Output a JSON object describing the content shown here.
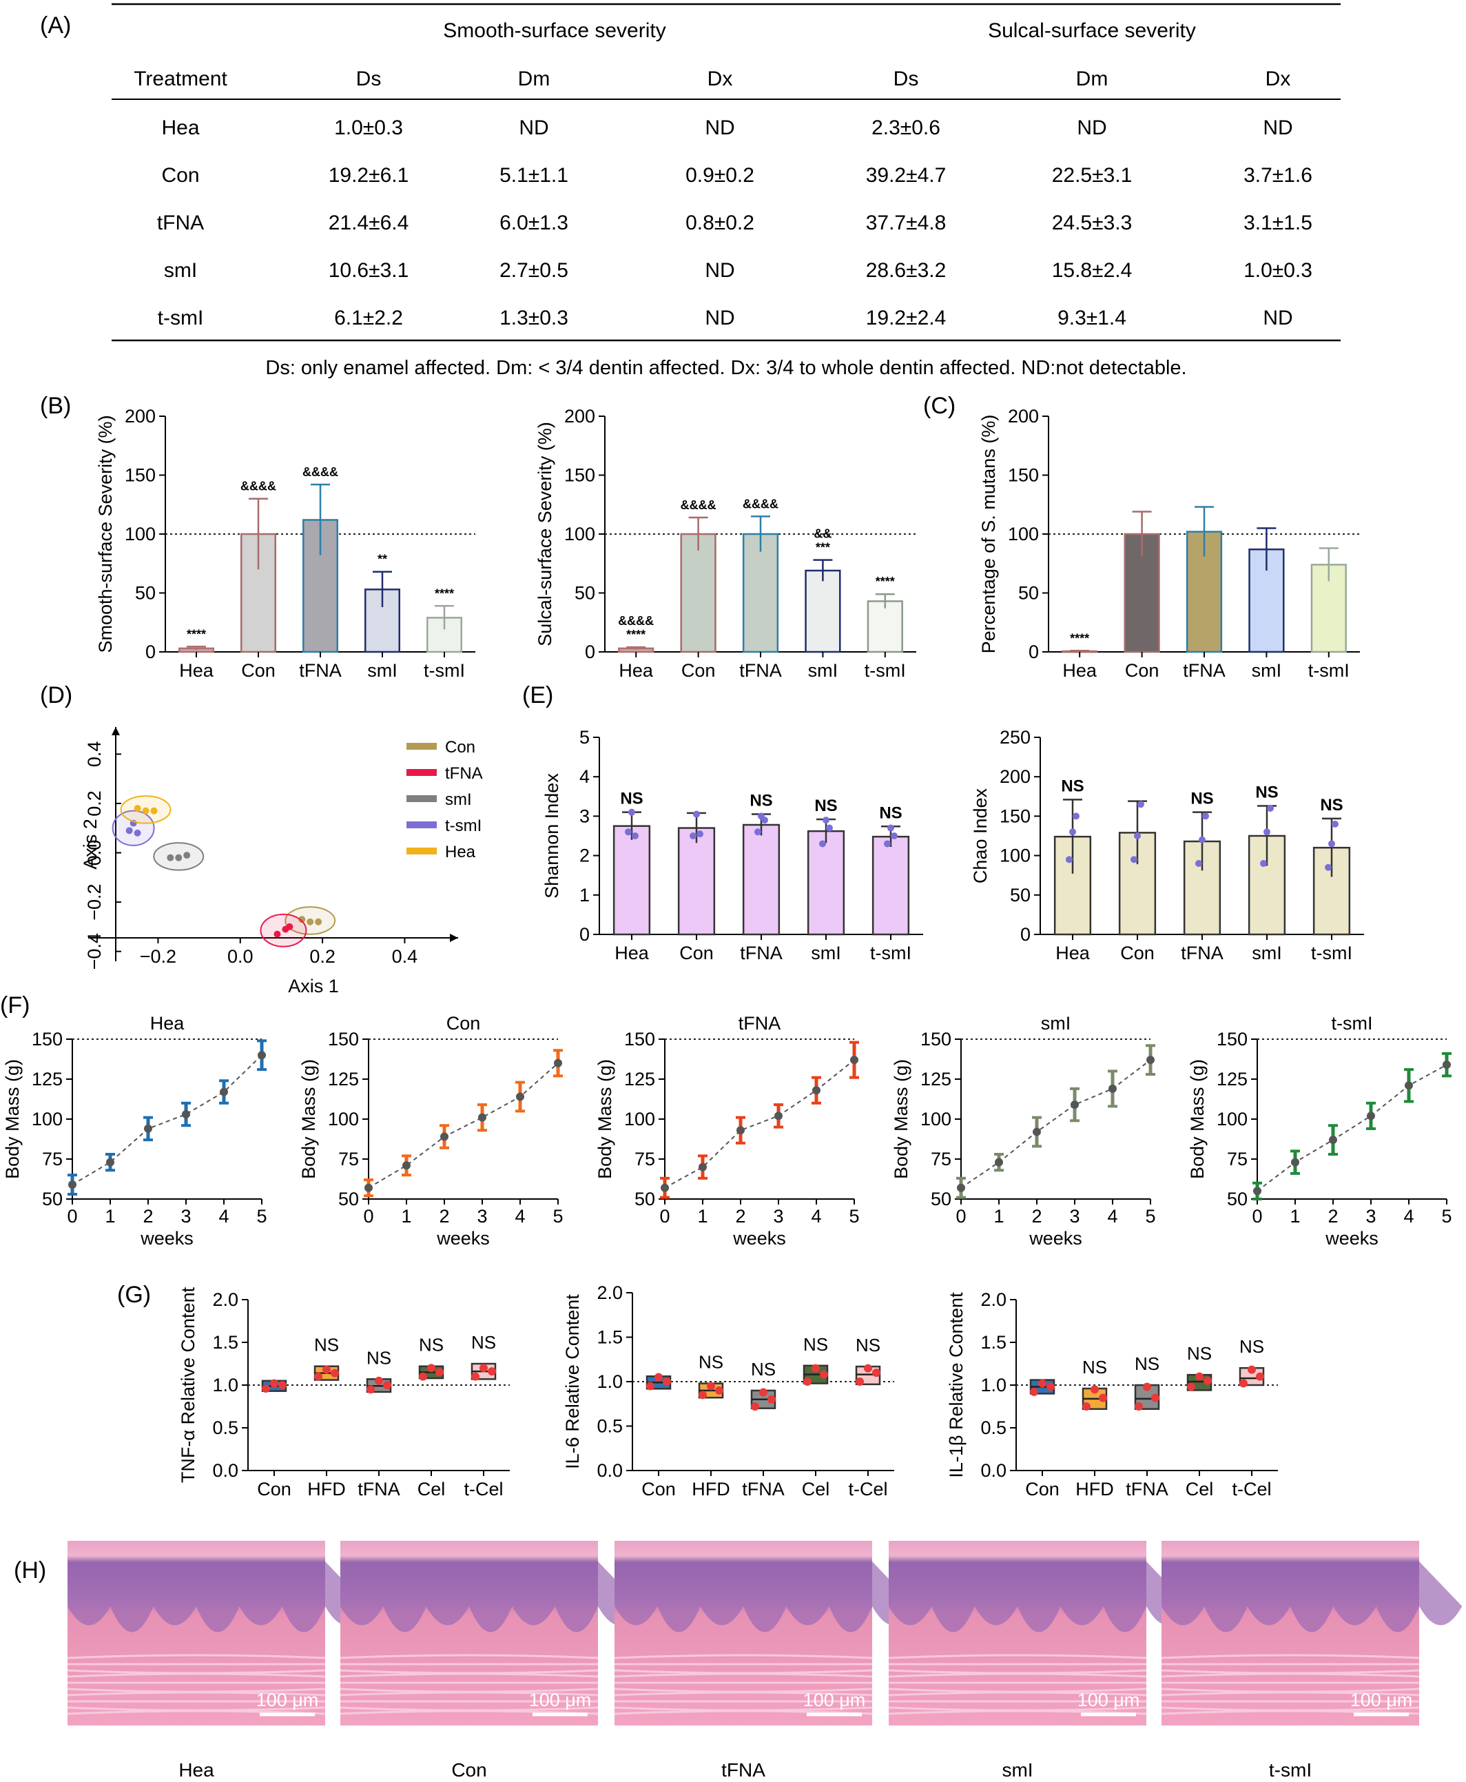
{
  "panel_labels": [
    "(A)",
    "(B)",
    "(C)",
    "(D)",
    "(E)",
    "(F)",
    "(G)",
    "(H)"
  ],
  "table": {
    "group_headers": [
      "Smooth-surface severity",
      "Sulcal-surface severity"
    ],
    "columns": [
      "Treatment",
      "Ds",
      "Dm",
      "Dx",
      "Ds",
      "Dm",
      "Dx"
    ],
    "rows": [
      [
        "Hea",
        "1.0±0.3",
        "ND",
        "ND",
        "2.3±0.6",
        "ND",
        "ND"
      ],
      [
        "Con",
        "19.2±6.1",
        "5.1±1.1",
        "0.9±0.2",
        "39.2±4.7",
        "22.5±3.1",
        "3.7±1.6"
      ],
      [
        "tFNA",
        "21.4±6.4",
        "6.0±1.3",
        "0.8±0.2",
        "37.7±4.8",
        "24.5±3.3",
        "3.1±1.5"
      ],
      [
        "smI",
        "10.6±3.1",
        "2.7±0.5",
        "ND",
        "28.6±3.2",
        "15.8±2.4",
        "1.0±0.3"
      ],
      [
        "t-smI",
        "6.1±2.2",
        "1.3±0.3",
        "ND",
        "19.2±2.4",
        "9.3±1.4",
        "ND"
      ]
    ],
    "footnote": "Ds: only enamel affected. Dm: < 3/4 dentin affected. Dx: 3/4 to whole dentin affected. ND:not detectable."
  },
  "histology": {
    "scale_bar": "100 μm",
    "labels": [
      "Hea",
      "Con",
      "tFNA",
      "smI",
      "t-smI"
    ]
  },
  "chart_data": [
    {
      "id": "B1",
      "type": "bar",
      "categories": [
        "Hea",
        "Con",
        "tFNA",
        "smI",
        "t-smI"
      ],
      "values": [
        3,
        100,
        112,
        53,
        29
      ],
      "errors": [
        1.5,
        30,
        30,
        15,
        10
      ],
      "annotations": [
        [
          "****"
        ],
        [
          "&&&&"
        ],
        [
          "&&&&"
        ],
        [
          "**"
        ],
        [
          "****"
        ]
      ],
      "ylabel": "Smooth-surface Severity (%)",
      "ylim": [
        0,
        200
      ],
      "yticks": [
        0,
        50,
        100,
        150,
        200
      ],
      "reference_line": 100,
      "fills": [
        "#c9a7a7",
        "#d2d2d2",
        "#a8a8ae",
        "#d7dce8",
        "#eef2ec"
      ],
      "edges": [
        "#b07070",
        "#a96a6a",
        "#2d7fa8",
        "#1f2d6e",
        "#9aa89a"
      ]
    },
    {
      "id": "B2",
      "type": "bar",
      "categories": [
        "Hea",
        "Con",
        "tFNA",
        "smI",
        "t-smI"
      ],
      "values": [
        3,
        100,
        100,
        69,
        43
      ],
      "errors": [
        1,
        14,
        15,
        9,
        6
      ],
      "annotations": [
        [
          "&&&&",
          "****"
        ],
        [
          "&&&&"
        ],
        [
          "&&&&"
        ],
        [
          "&&",
          "***"
        ],
        [
          "****"
        ]
      ],
      "ylabel": "Sulcal-surface Severity (%)",
      "ylim": [
        0,
        200
      ],
      "yticks": [
        0,
        50,
        100,
        150,
        200
      ],
      "reference_line": 100,
      "fills": [
        "#c9a7a7",
        "#c5cfc5",
        "#c5cfc5",
        "#eceeee",
        "#f4f6f1"
      ],
      "edges": [
        "#b07070",
        "#a96a6a",
        "#2d7fa8",
        "#1f2d6e",
        "#8a9a8a"
      ]
    },
    {
      "id": "C",
      "type": "bar",
      "categories": [
        "Hea",
        "Con",
        "tFNA",
        "smI",
        "t-smI"
      ],
      "values": [
        0.5,
        100,
        102,
        87,
        74
      ],
      "errors": [
        0.5,
        19,
        21,
        18,
        14
      ],
      "annotations": [
        [
          "****"
        ],
        [],
        [],
        [],
        []
      ],
      "ylabel": "Percentage of S. mutans (%)",
      "ylim": [
        0,
        200
      ],
      "yticks": [
        0,
        50,
        100,
        150,
        200
      ],
      "reference_line": 100,
      "fills": [
        "#c9a7a7",
        "#706868",
        "#b6a36a",
        "#c8d8f6",
        "#e8f1c8"
      ],
      "edges": [
        "#a96a6a",
        "#a96a6a",
        "#2d7fa8",
        "#1f2d6e",
        "#9aa89a"
      ]
    },
    {
      "id": "D",
      "type": "scatter",
      "xlabel": "Axis 1",
      "ylabel": "Axis 2",
      "xlim": [
        -0.37,
        0.53
      ],
      "ylim": [
        -0.44,
        0.51
      ],
      "xticks": [
        -0.2,
        0.0,
        0.2,
        0.4
      ],
      "yticks": [
        -0.4,
        -0.2,
        0.0,
        0.2,
        0.4
      ],
      "xtick_labels": [
        "−0.2",
        "0.0",
        "0.2",
        "0.4"
      ],
      "ytick_labels": [
        "−0.4",
        "−0.2",
        "0.0",
        "0.2",
        "0.4"
      ],
      "series": [
        {
          "name": "Con",
          "color": "#b59a52",
          "points": [
            [
              0.15,
              -0.27
            ],
            [
              0.17,
              -0.28
            ],
            [
              0.19,
              -0.28
            ]
          ]
        },
        {
          "name": "tFNA",
          "color": "#e8194a",
          "points": [
            [
              0.09,
              -0.33
            ],
            [
              0.11,
              -0.31
            ],
            [
              0.12,
              -0.3
            ]
          ]
        },
        {
          "name": "smI",
          "color": "#7f7f7f",
          "points": [
            [
              -0.17,
              -0.02
            ],
            [
              -0.15,
              -0.02
            ],
            [
              -0.13,
              -0.01
            ]
          ]
        },
        {
          "name": "t-smI",
          "color": "#7b6fd6",
          "points": [
            [
              -0.27,
              0.09
            ],
            [
              -0.26,
              0.12
            ],
            [
              -0.25,
              0.08
            ]
          ]
        },
        {
          "name": "Hea",
          "color": "#f2b21c",
          "points": [
            [
              -0.25,
              0.18
            ],
            [
              -0.23,
              0.17
            ],
            [
              -0.21,
              0.17
            ]
          ]
        }
      ]
    },
    {
      "id": "E1",
      "type": "bar",
      "categories": [
        "Hea",
        "Con",
        "tFNA",
        "smI",
        "t-smI"
      ],
      "values": [
        2.75,
        2.7,
        2.78,
        2.62,
        2.48
      ],
      "errors": [
        0.35,
        0.38,
        0.27,
        0.3,
        0.26
      ],
      "annotations": [
        [
          "NS"
        ],
        [],
        [
          "NS"
        ],
        [
          "NS"
        ],
        [
          "NS"
        ]
      ],
      "ylabel": "Shannon Index",
      "ylim": [
        0,
        5
      ],
      "yticks": [
        0,
        1,
        2,
        3,
        4,
        5
      ],
      "fills": [
        "#ecc9f7",
        "#ecc9f7",
        "#ecc9f7",
        "#ecc9f7",
        "#ecc9f7"
      ],
      "edges": [
        "#333333",
        "#333333",
        "#333333",
        "#333333",
        "#333333"
      ],
      "points": [
        [
          2.6,
          3.1,
          2.5
        ],
        [
          2.5,
          3.05,
          2.55
        ],
        [
          2.6,
          3.0,
          2.9
        ],
        [
          2.3,
          2.9,
          2.7
        ],
        [
          2.3,
          2.7,
          2.5
        ]
      ]
    },
    {
      "id": "E2",
      "type": "bar",
      "categories": [
        "Hea",
        "Con",
        "tFNA",
        "smI",
        "t-smI"
      ],
      "values": [
        124,
        129,
        118,
        125,
        110
      ],
      "errors": [
        47,
        40,
        37,
        38,
        37
      ],
      "annotations": [
        [
          "NS"
        ],
        [],
        [
          "NS"
        ],
        [
          "NS"
        ],
        [
          "NS"
        ]
      ],
      "ylabel": "Chao Index",
      "ylim": [
        0,
        250
      ],
      "yticks": [
        0,
        50,
        100,
        150,
        200,
        250
      ],
      "fills": [
        "#ede7c9",
        "#ede7c9",
        "#ede7c9",
        "#ede7c9",
        "#ede7c9"
      ],
      "edges": [
        "#333333",
        "#333333",
        "#333333",
        "#333333",
        "#333333"
      ],
      "points": [
        [
          95,
          130,
          150
        ],
        [
          95,
          125,
          165
        ],
        [
          90,
          120,
          150
        ],
        [
          90,
          130,
          160
        ],
        [
          85,
          115,
          140
        ]
      ]
    },
    {
      "id": "F1",
      "type": "line",
      "title": "Hea",
      "x": [
        0,
        1,
        2,
        3,
        4,
        5
      ],
      "values": [
        59,
        73,
        94,
        103,
        117,
        140
      ],
      "errors": [
        6,
        5,
        7,
        7,
        7,
        9
      ],
      "xlabel": "weeks",
      "ylabel": "Body Mass (g)",
      "ylim": [
        50,
        150
      ],
      "yticks": [
        50,
        75,
        100,
        125,
        150
      ],
      "reference_line": 150,
      "color": "#1f6fb0"
    },
    {
      "id": "F2",
      "type": "line",
      "title": "Con",
      "x": [
        0,
        1,
        2,
        3,
        4,
        5
      ],
      "values": [
        57,
        71,
        89,
        101,
        114,
        135
      ],
      "errors": [
        5,
        6,
        7,
        8,
        9,
        8
      ],
      "xlabel": "weeks",
      "ylabel": "Body Mass (g)",
      "ylim": [
        50,
        150
      ],
      "yticks": [
        50,
        75,
        100,
        125,
        150
      ],
      "reference_line": 150,
      "color": "#f06a1a"
    },
    {
      "id": "F3",
      "type": "line",
      "title": "tFNA",
      "x": [
        0,
        1,
        2,
        3,
        4,
        5
      ],
      "values": [
        57,
        70,
        93,
        102,
        118,
        137
      ],
      "errors": [
        6,
        7,
        8,
        7,
        8,
        11
      ],
      "xlabel": "weeks",
      "ylabel": "Body Mass (g)",
      "ylim": [
        50,
        150
      ],
      "yticks": [
        50,
        75,
        100,
        125,
        150
      ],
      "reference_line": 150,
      "color": "#e8411a"
    },
    {
      "id": "F4",
      "type": "line",
      "title": "smI",
      "x": [
        0,
        1,
        2,
        3,
        4,
        5
      ],
      "values": [
        57,
        73,
        92,
        109,
        119,
        137
      ],
      "errors": [
        6,
        5,
        9,
        10,
        11,
        9
      ],
      "xlabel": "weeks",
      "ylabel": "Body Mass (g)",
      "ylim": [
        50,
        150
      ],
      "yticks": [
        50,
        75,
        100,
        125,
        150
      ],
      "reference_line": 150,
      "color": "#7a8a6a"
    },
    {
      "id": "F5",
      "type": "line",
      "title": "t-smI",
      "x": [
        0,
        1,
        2,
        3,
        4,
        5
      ],
      "values": [
        55,
        73,
        87,
        102,
        121,
        134
      ],
      "errors": [
        5,
        7,
        9,
        8,
        10,
        7
      ],
      "xlabel": "weeks",
      "ylabel": "Body Mass (g)",
      "ylim": [
        50,
        150
      ],
      "yticks": [
        50,
        75,
        100,
        125,
        150
      ],
      "reference_line": 150,
      "color": "#1f8a3a"
    },
    {
      "id": "G1",
      "type": "box",
      "categories": [
        "Con",
        "HFD",
        "tFNA",
        "Cel",
        "t-Cel"
      ],
      "boxes": [
        [
          0.93,
          0.99,
          1.05
        ],
        [
          1.06,
          1.14,
          1.22
        ],
        [
          0.92,
          0.99,
          1.07
        ],
        [
          1.08,
          1.15,
          1.22
        ],
        [
          1.07,
          1.16,
          1.25
        ]
      ],
      "points": [
        [
          0.96,
          1.02,
          1.0
        ],
        [
          1.1,
          1.18,
          1.14
        ],
        [
          0.95,
          1.05,
          1.0
        ],
        [
          1.1,
          1.2,
          1.15
        ],
        [
          1.1,
          1.2,
          1.16
        ]
      ],
      "annotations": [
        "",
        "NS",
        "NS",
        "NS",
        "NS"
      ],
      "ylabel": "TNF-α Relative Content",
      "ylim": [
        0,
        2
      ],
      "yticks": [
        0.0,
        0.5,
        1.0,
        1.5,
        2.0
      ],
      "reference_line": 1.0,
      "fills": [
        "#2f73b5",
        "#f2a93b",
        "#8c8c8c",
        "#4f6b3a",
        "#f5c9c9"
      ]
    },
    {
      "id": "G2",
      "type": "box",
      "categories": [
        "Con",
        "HFD",
        "tFNA",
        "Cel",
        "t-Cel"
      ],
      "boxes": [
        [
          0.92,
          0.99,
          1.06
        ],
        [
          0.82,
          0.9,
          0.98
        ],
        [
          0.7,
          0.8,
          0.9
        ],
        [
          0.98,
          1.08,
          1.18
        ],
        [
          0.97,
          1.08,
          1.17
        ]
      ],
      "points": [
        [
          0.95,
          1.05,
          1.0
        ],
        [
          0.85,
          0.95,
          0.9
        ],
        [
          0.72,
          0.88,
          0.8
        ],
        [
          1.0,
          1.15,
          1.08
        ],
        [
          1.0,
          1.15,
          1.1
        ]
      ],
      "annotations": [
        "",
        "NS",
        "NS",
        "NS",
        "NS"
      ],
      "ylabel": "IL-6 Relative Content",
      "ylim": [
        0,
        2
      ],
      "yticks": [
        0.0,
        0.5,
        1.0,
        1.5,
        2.0
      ],
      "reference_line": 1.0,
      "fills": [
        "#2f73b5",
        "#f2a93b",
        "#8c8c8c",
        "#4f6b3a",
        "#f5c9c9"
      ]
    },
    {
      "id": "G3",
      "type": "box",
      "categories": [
        "Con",
        "HFD",
        "tFNA",
        "Cel",
        "t-Cel"
      ],
      "boxes": [
        [
          0.9,
          0.98,
          1.06
        ],
        [
          0.72,
          0.84,
          0.96
        ],
        [
          0.72,
          0.84,
          1.0
        ],
        [
          0.94,
          1.04,
          1.12
        ],
        [
          1.0,
          1.08,
          1.2
        ]
      ],
      "points": [
        [
          0.92,
          1.02,
          0.98
        ],
        [
          0.75,
          0.95,
          0.85
        ],
        [
          0.75,
          0.98,
          0.85
        ],
        [
          0.98,
          1.1,
          1.05
        ],
        [
          1.02,
          1.18,
          1.1
        ]
      ],
      "annotations": [
        "",
        "NS",
        "NS",
        "NS",
        "NS"
      ],
      "ylabel": "IL-1β Relative Content",
      "ylim": [
        0,
        2
      ],
      "yticks": [
        0.0,
        0.5,
        1.0,
        1.5,
        2.0
      ],
      "reference_line": 1.0,
      "fills": [
        "#2f73b5",
        "#f2a93b",
        "#8c8c8c",
        "#4f6b3a",
        "#f5c9c9"
      ]
    }
  ]
}
